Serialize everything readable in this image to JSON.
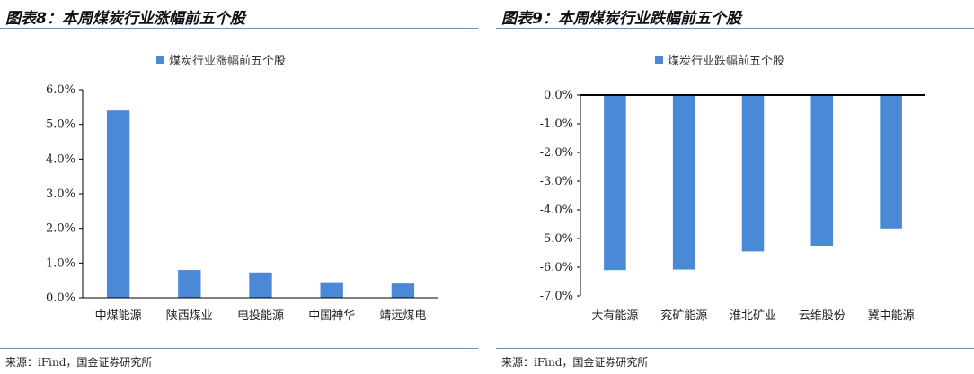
{
  "colors": {
    "bar": "#4a89d6",
    "axis": "#000000",
    "rule": "#6d8fb8"
  },
  "chart_data": [
    {
      "type": "bar",
      "title": "图表8：本周煤炭行业涨幅前五个股",
      "source": "来源：iFind，国金证券研究所",
      "legend": "煤炭行业涨幅前五个股",
      "categories": [
        "中煤能源",
        "陕西煤业",
        "电投能源",
        "中国神华",
        "靖远煤电"
      ],
      "values": [
        5.4,
        0.8,
        0.73,
        0.45,
        0.41
      ],
      "ylim": [
        0,
        6
      ],
      "yticks": [
        "0.0%",
        "1.0%",
        "2.0%",
        "3.0%",
        "4.0%",
        "5.0%",
        "6.0%"
      ],
      "grid": false,
      "legend_position": "top-center"
    },
    {
      "type": "bar",
      "title": "图表9：本周煤炭行业跌幅前五个股",
      "source": "来源：iFind，国金证券研究所",
      "legend": "煤炭行业跌幅前五个股",
      "categories": [
        "大有能源",
        "兖矿能源",
        "淮北矿业",
        "云维股份",
        "冀中能源"
      ],
      "values": [
        -6.1,
        -6.08,
        -5.45,
        -5.25,
        -4.65
      ],
      "ylim": [
        -7,
        0
      ],
      "yticks": [
        "-7.0%",
        "-6.0%",
        "-5.0%",
        "-4.0%",
        "-3.0%",
        "-2.0%",
        "-1.0%",
        "0.0%"
      ],
      "grid": false,
      "legend_position": "top-center"
    }
  ]
}
